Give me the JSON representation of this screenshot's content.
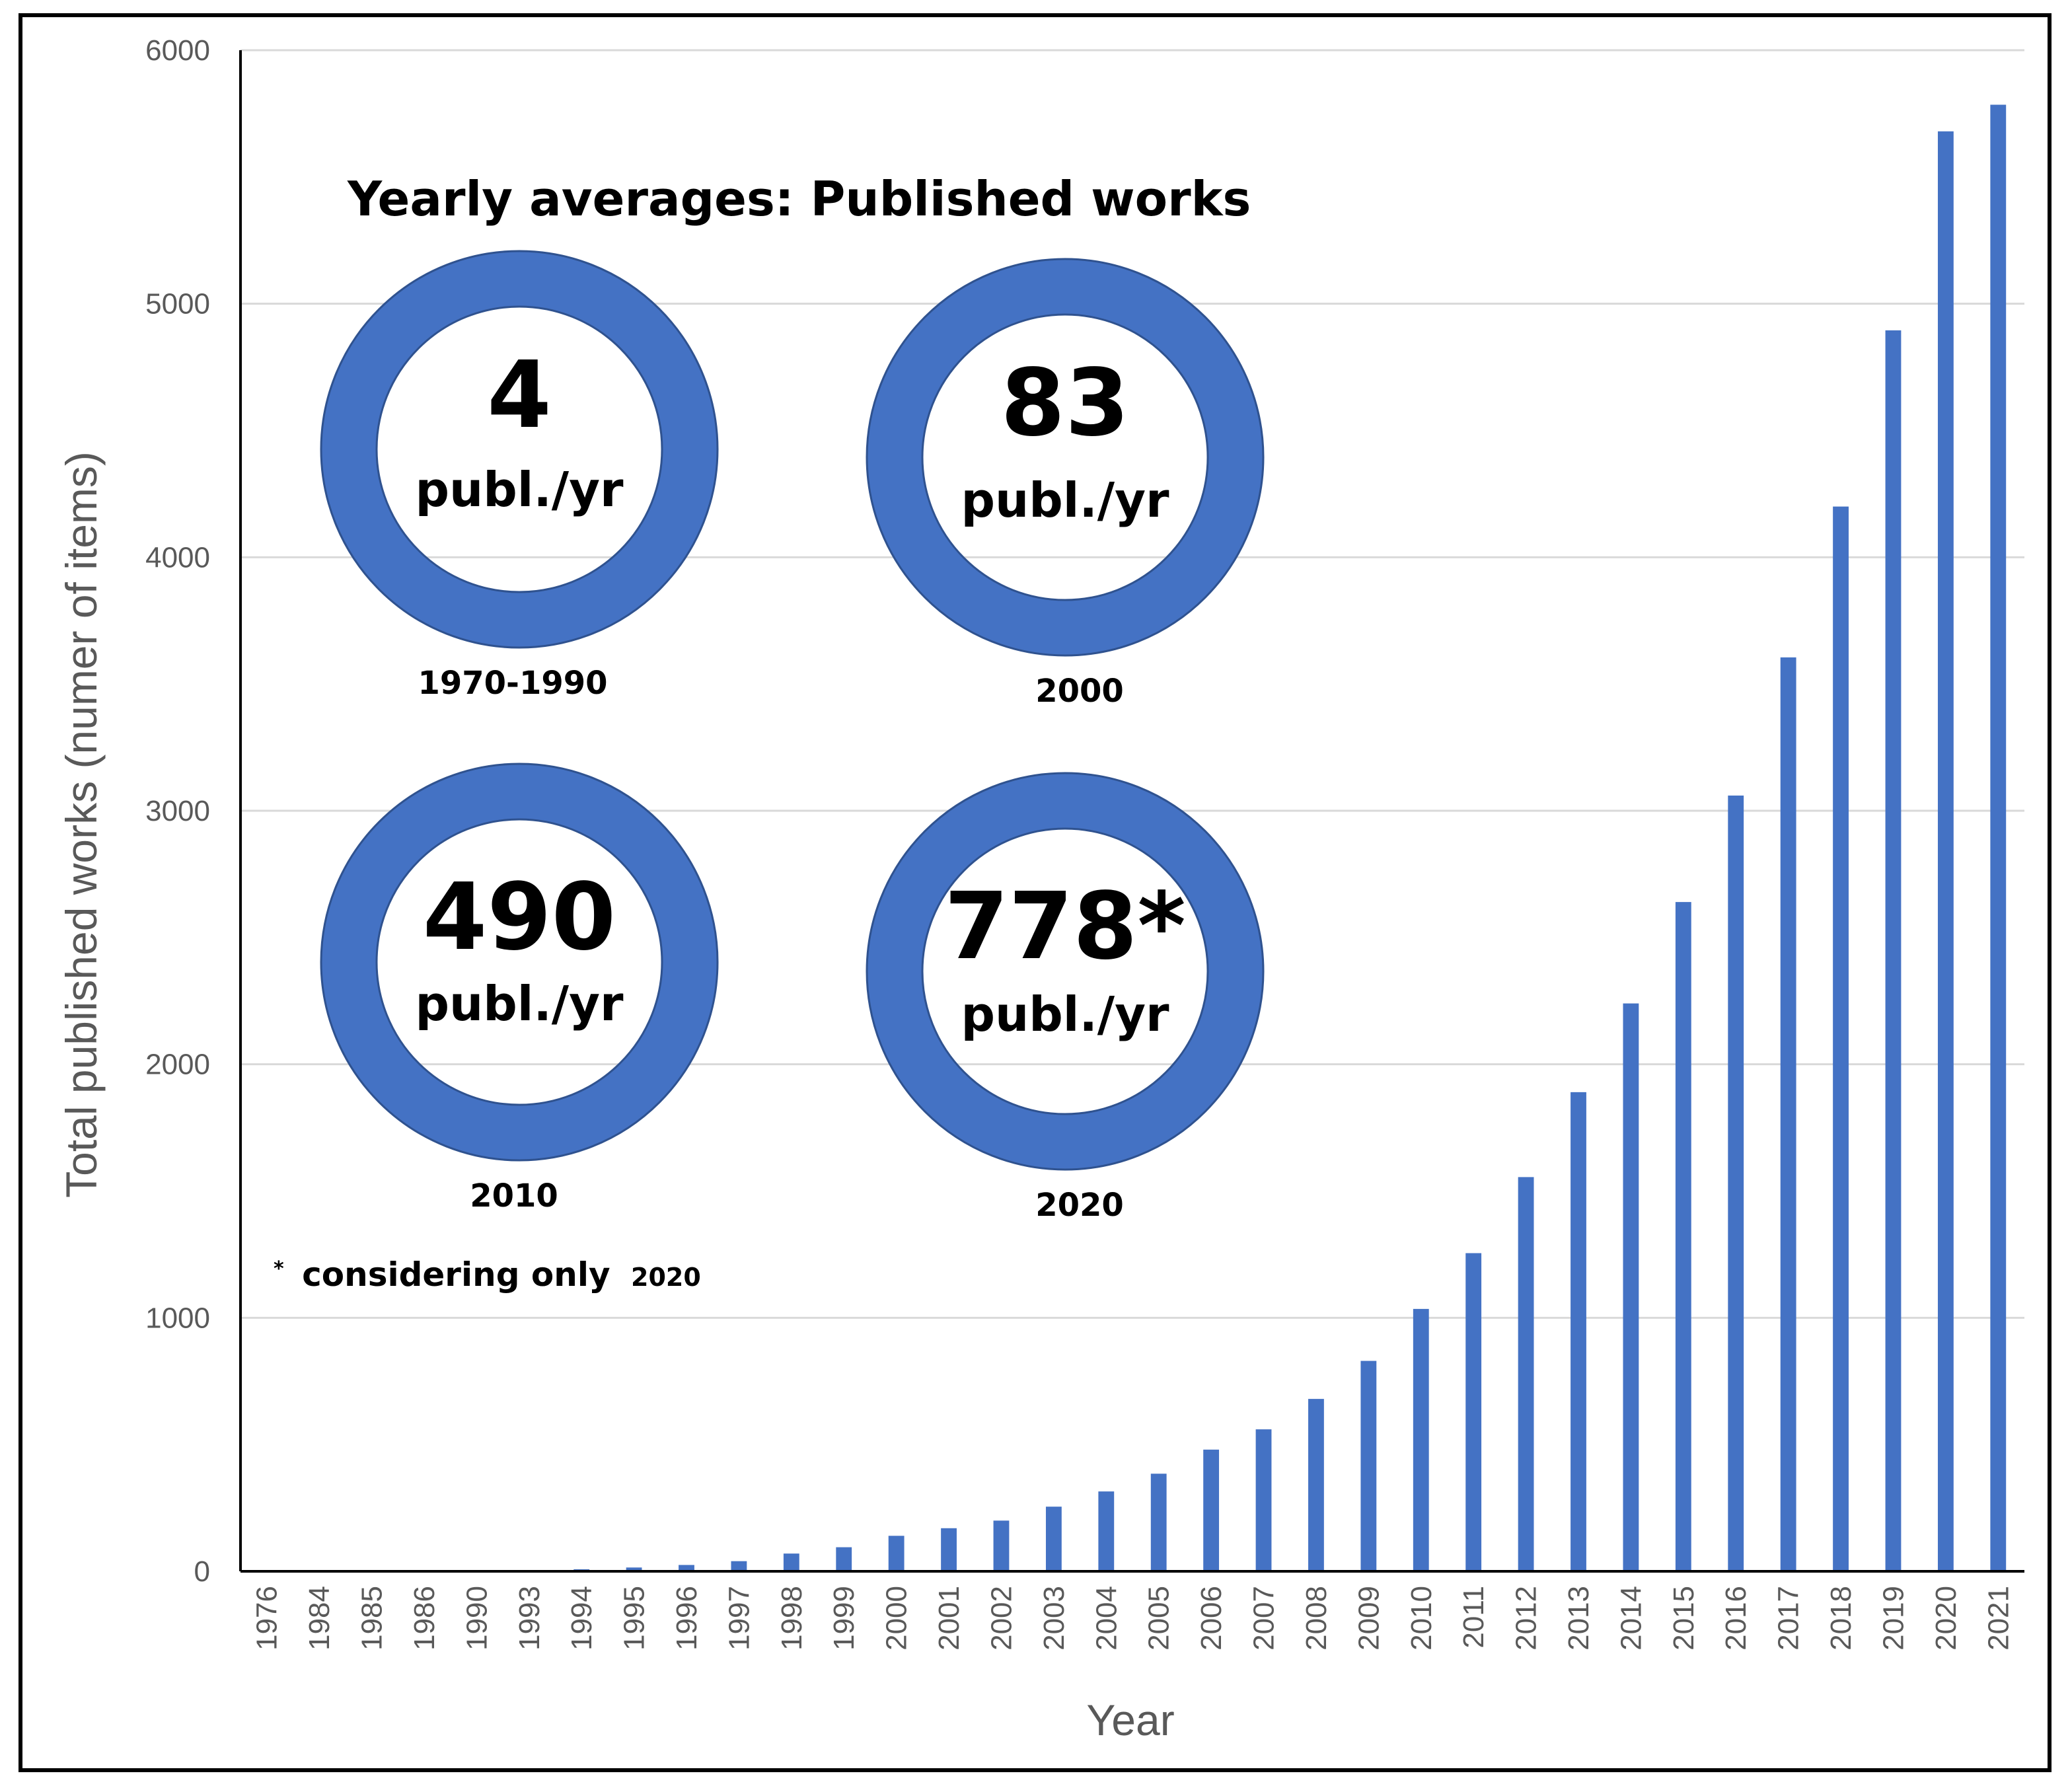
{
  "chart_data": {
    "type": "bar",
    "title": "",
    "xlabel": "Year",
    "ylabel": "Total published works (numer of items)",
    "ylim": [
      0,
      6000
    ],
    "yticks": [
      0,
      1000,
      2000,
      3000,
      4000,
      5000,
      6000
    ],
    "grid": true,
    "categories": [
      "1976",
      "1984",
      "1985",
      "1986",
      "1990",
      "1993",
      "1994",
      "1995",
      "1996",
      "1997",
      "1998",
      "1999",
      "2000",
      "2001",
      "2002",
      "2003",
      "2004",
      "2005",
      "2006",
      "2007",
      "2008",
      "2009",
      "2010",
      "2011",
      "2012",
      "2013",
      "2014",
      "2015",
      "2016",
      "2017",
      "2018",
      "2019",
      "2020",
      "2021"
    ],
    "values": [
      1,
      1,
      1,
      1,
      1,
      2,
      8,
      15,
      25,
      40,
      70,
      95,
      140,
      170,
      200,
      255,
      315,
      385,
      480,
      560,
      680,
      830,
      1035,
      1255,
      1555,
      1890,
      2240,
      2640,
      3060,
      3605,
      4200,
      4895,
      5680,
      5785
    ],
    "bar_color": "#4472c4"
  },
  "inset": {
    "title": "Yearly averages: Published works",
    "ring_color": "#4472c4",
    "ring_edge_color": "#2f528f",
    "rings": [
      {
        "value": "4",
        "unit": "publ./yr",
        "period": "1970-1990"
      },
      {
        "value": "83",
        "unit": "publ./yr",
        "period": "2000"
      },
      {
        "value": "490",
        "unit": "publ./yr",
        "period": "2010"
      },
      {
        "value": "778*",
        "unit": "publ./yr",
        "period": "2020"
      }
    ],
    "footnote_mark": "*",
    "footnote_text": "considering only",
    "footnote_year": "2020"
  }
}
